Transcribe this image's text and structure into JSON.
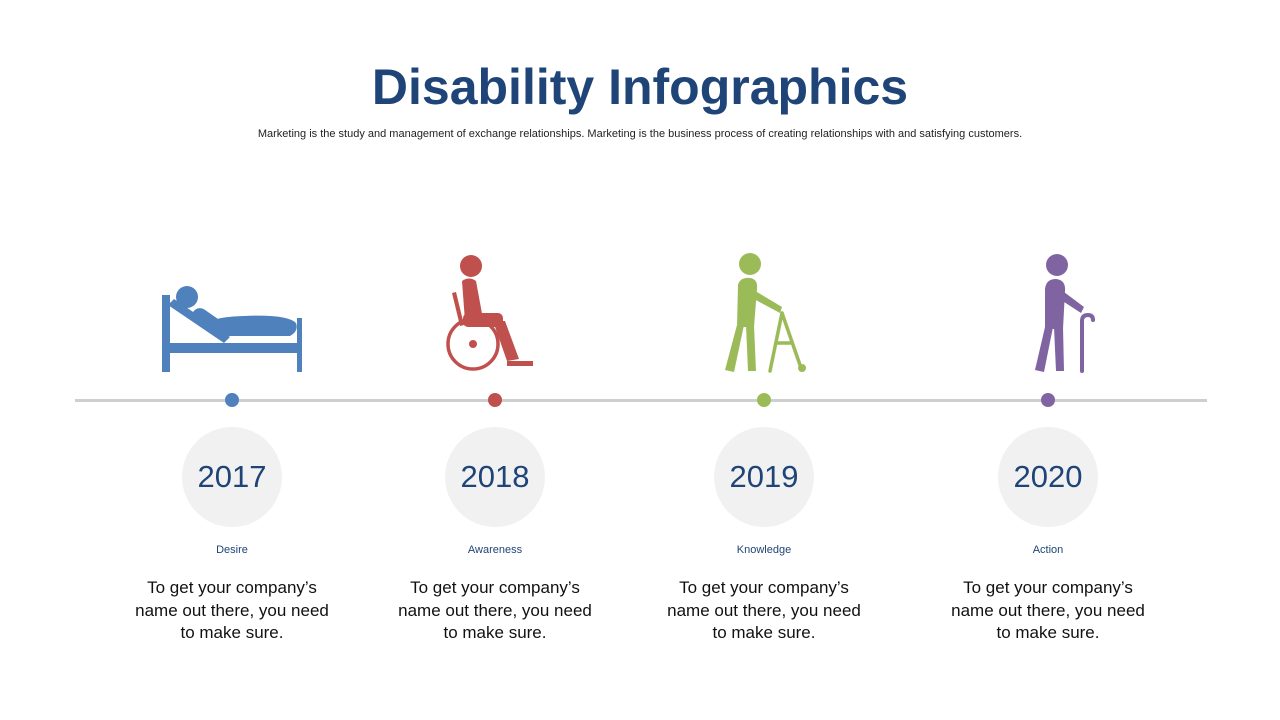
{
  "header": {
    "title": "Disability Infographics",
    "subtitle": "Marketing is the study and management of exchange relationships. Marketing is the business process of creating relationships with and satisfying customers."
  },
  "colors": {
    "title": "#1f4477",
    "year_text": "#1f4477",
    "label_text": "#1f4477",
    "line": "#cfcfcf",
    "circle_fill": "#f1f1f2"
  },
  "steps": [
    {
      "year": "2017",
      "label": "Desire",
      "text": "To get your company’s name out there, you need to make sure.",
      "color": "#4f81bd",
      "icon": "person-in-bed-icon"
    },
    {
      "year": "2018",
      "label": "Awareness",
      "text": "To get your company’s name out there, you need to make sure.",
      "color": "#c0504d",
      "icon": "wheelchair-icon"
    },
    {
      "year": "2019",
      "label": "Knowledge",
      "text": "To get your company’s name out there, you need to make sure.",
      "color": "#9bbb59",
      "icon": "walker-icon"
    },
    {
      "year": "2020",
      "label": "Action",
      "text": "To get your company’s name out there, you need to make sure.",
      "color": "#8064a2",
      "icon": "cane-icon"
    }
  ]
}
